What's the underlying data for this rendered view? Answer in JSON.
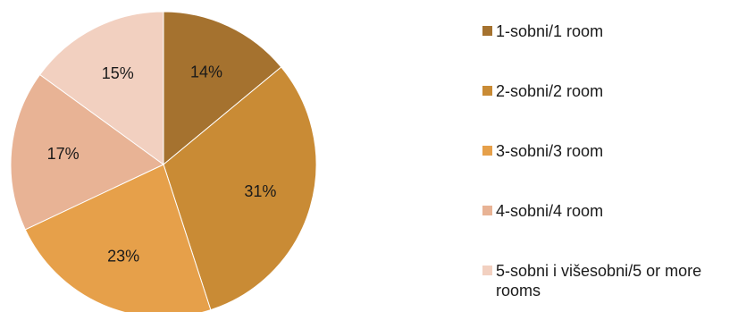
{
  "chart_data": {
    "type": "pie",
    "start_angle_deg": 0,
    "direction": "clockwise",
    "slices": [
      {
        "name": "1-sobni/1 room",
        "value": 14,
        "label": "14%",
        "color": "#A5722F"
      },
      {
        "name": "2-sobni/2 room",
        "value": 31,
        "label": "31%",
        "color": "#C98B35"
      },
      {
        "name": "3-sobni/3 room",
        "value": 23,
        "label": "23%",
        "color": "#E6A04A"
      },
      {
        "name": "4-sobni/4 room",
        "value": 17,
        "label": "17%",
        "color": "#E8B395"
      },
      {
        "name": "5-sobni i višesobni/5 or more rooms",
        "value": 15,
        "label": "15%",
        "color": "#F2D0C0"
      }
    ],
    "legend_position": "right"
  }
}
